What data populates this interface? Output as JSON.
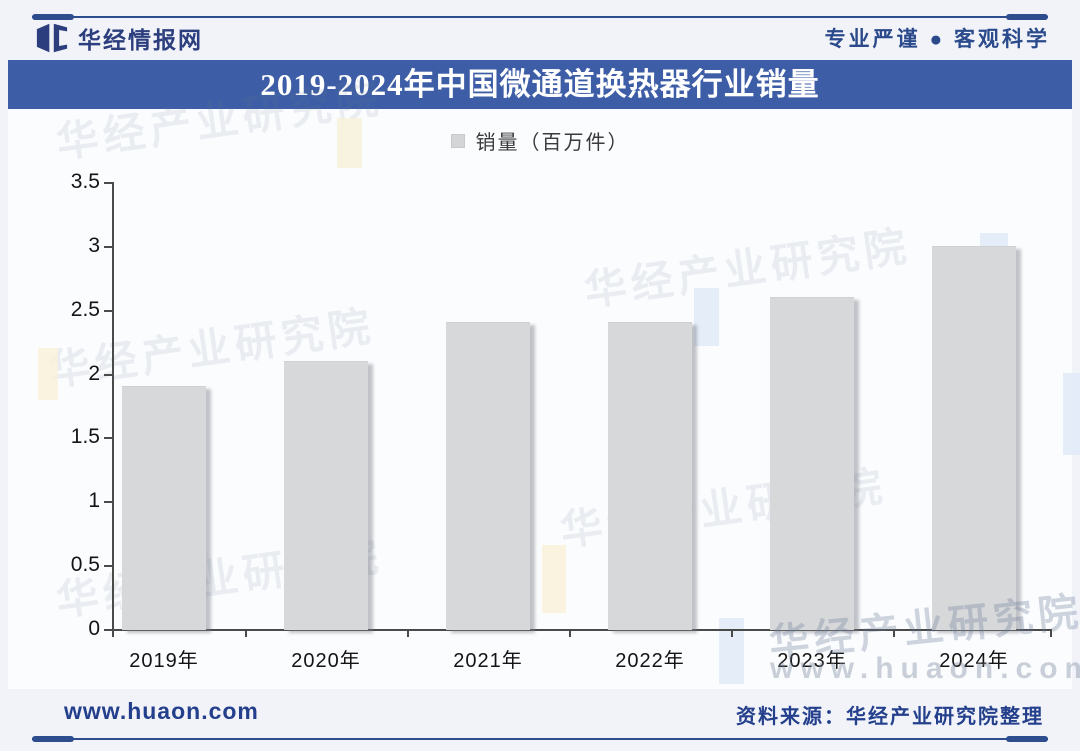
{
  "header": {
    "brand": "华经情报网",
    "tagline": "专业严谨 ● 客观科学"
  },
  "title": "2019-2024年中国微通道换热器行业销量",
  "chart_data": {
    "type": "bar",
    "title": "2019-2024年中国微通道换热器行业销量",
    "legend_entries": [
      "销量（百万件）"
    ],
    "legend_position": "top-center",
    "categories": [
      "2019年",
      "2020年",
      "2021年",
      "2022年",
      "2023年",
      "2024年"
    ],
    "series": [
      {
        "name": "销量（百万件）",
        "values": [
          1.9,
          2.1,
          2.4,
          2.4,
          2.6,
          3.0
        ]
      }
    ],
    "xlabel": "",
    "ylabel": "",
    "ylim": [
      0,
      3.5
    ],
    "ytick_step": 0.5,
    "yticks": [
      "0",
      "0.5",
      "1",
      "1.5",
      "2",
      "2.5",
      "3",
      "3.5"
    ],
    "grid": false,
    "bar_color": "#d7d8da"
  },
  "watermark": {
    "text": "华经产业研究院",
    "url": "www.huaon.com"
  },
  "footer": {
    "site": "www.huaon.com",
    "source": "资料来源：华经产业研究院整理"
  },
  "colors": {
    "title_bar": "#3d5ea6",
    "navy_text": "#2b4a8b",
    "bar": "#d7d8da",
    "page_bg": "#f1f3f9",
    "panel_bg": "#fbfcfe",
    "axis": "#4a4a4a"
  }
}
